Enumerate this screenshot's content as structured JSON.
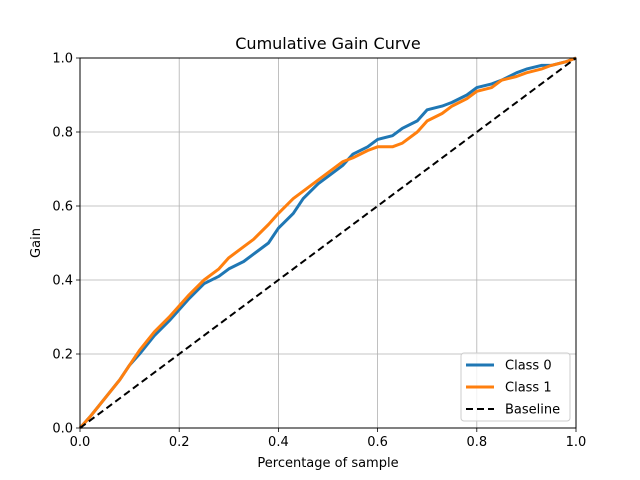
{
  "chart_data": {
    "type": "line",
    "title": "Cumulative Gain Curve",
    "xlabel": "Percentage of sample",
    "ylabel": "Gain",
    "xlim": [
      0,
      1
    ],
    "ylim": [
      0,
      1
    ],
    "grid": true,
    "legend_position": "lower-right",
    "xticks": [
      0.0,
      0.2,
      0.4,
      0.6,
      0.8,
      1.0
    ],
    "yticks": [
      0.0,
      0.2,
      0.4,
      0.6,
      0.8,
      1.0
    ],
    "xtick_labels": [
      "0.0",
      "0.2",
      "0.4",
      "0.6",
      "0.8",
      "1.0"
    ],
    "ytick_labels": [
      "0.0",
      "0.2",
      "0.4",
      "0.6",
      "0.8",
      "1.0"
    ],
    "series": [
      {
        "name": "Class 0",
        "color": "#1f77b4",
        "style": "solid",
        "x": [
          0,
          0.02,
          0.05,
          0.08,
          0.1,
          0.12,
          0.15,
          0.18,
          0.2,
          0.22,
          0.25,
          0.28,
          0.3,
          0.33,
          0.35,
          0.38,
          0.4,
          0.43,
          0.45,
          0.48,
          0.5,
          0.53,
          0.55,
          0.58,
          0.6,
          0.63,
          0.65,
          0.68,
          0.7,
          0.73,
          0.75,
          0.78,
          0.8,
          0.83,
          0.85,
          0.88,
          0.9,
          0.93,
          0.95,
          0.98,
          1.0
        ],
        "y": [
          0,
          0.03,
          0.08,
          0.13,
          0.17,
          0.2,
          0.25,
          0.29,
          0.32,
          0.35,
          0.39,
          0.41,
          0.43,
          0.45,
          0.47,
          0.5,
          0.54,
          0.58,
          0.62,
          0.66,
          0.68,
          0.71,
          0.74,
          0.76,
          0.78,
          0.79,
          0.81,
          0.83,
          0.86,
          0.87,
          0.88,
          0.9,
          0.92,
          0.93,
          0.94,
          0.96,
          0.97,
          0.98,
          0.98,
          0.99,
          1.0
        ]
      },
      {
        "name": "Class 1",
        "color": "#ff7f0e",
        "style": "solid",
        "x": [
          0,
          0.02,
          0.05,
          0.08,
          0.1,
          0.12,
          0.15,
          0.18,
          0.2,
          0.22,
          0.25,
          0.28,
          0.3,
          0.33,
          0.35,
          0.38,
          0.4,
          0.43,
          0.45,
          0.48,
          0.5,
          0.53,
          0.55,
          0.58,
          0.6,
          0.63,
          0.65,
          0.68,
          0.7,
          0.73,
          0.75,
          0.78,
          0.8,
          0.83,
          0.85,
          0.88,
          0.9,
          0.93,
          0.95,
          0.98,
          1.0
        ],
        "y": [
          0,
          0.03,
          0.08,
          0.13,
          0.17,
          0.21,
          0.26,
          0.3,
          0.33,
          0.36,
          0.4,
          0.43,
          0.46,
          0.49,
          0.51,
          0.55,
          0.58,
          0.62,
          0.64,
          0.67,
          0.69,
          0.72,
          0.73,
          0.75,
          0.76,
          0.76,
          0.77,
          0.8,
          0.83,
          0.85,
          0.87,
          0.89,
          0.91,
          0.92,
          0.94,
          0.95,
          0.96,
          0.97,
          0.98,
          0.99,
          1.0
        ]
      },
      {
        "name": "Baseline",
        "color": "#000000",
        "style": "dashed",
        "x": [
          0,
          1
        ],
        "y": [
          0,
          1
        ]
      }
    ]
  }
}
